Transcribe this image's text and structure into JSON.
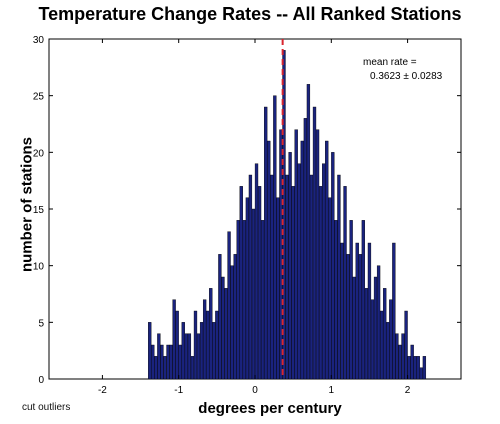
{
  "chart_data": {
    "type": "bar",
    "title": "Temperature Change Rates -- All Ranked Stations",
    "xlabel": "degrees per century",
    "ylabel": "number of stations",
    "xlim": [
      -2.7,
      2.7
    ],
    "ylim": [
      0,
      30
    ],
    "xticks": [
      -2,
      -1,
      0,
      1,
      2
    ],
    "yticks": [
      0,
      5,
      10,
      15,
      20,
      25,
      30
    ],
    "bin_width": 0.038,
    "bar_color": "#1a237e",
    "grid": false,
    "annotations": {
      "stats_line1": "mean rate =",
      "stats_line2": "0.3623 ± 0.0283",
      "note": "cut outliers",
      "mean_value": 0.3623,
      "mean_line_color": "#d9262f"
    },
    "x": [
      -1.38,
      -1.34,
      -1.3,
      -1.26,
      -1.22,
      -1.18,
      -1.14,
      -1.1,
      -1.06,
      -1.02,
      -0.98,
      -0.94,
      -0.9,
      -0.86,
      -0.82,
      -0.78,
      -0.74,
      -0.7,
      -0.66,
      -0.62,
      -0.58,
      -0.54,
      -0.5,
      -0.46,
      -0.42,
      -0.38,
      -0.34,
      -0.3,
      -0.26,
      -0.22,
      -0.18,
      -0.14,
      -0.1,
      -0.06,
      -0.02,
      0.02,
      0.06,
      0.1,
      0.14,
      0.18,
      0.22,
      0.26,
      0.3,
      0.34,
      0.38,
      0.42,
      0.46,
      0.5,
      0.54,
      0.58,
      0.62,
      0.66,
      0.7,
      0.74,
      0.78,
      0.82,
      0.86,
      0.9,
      0.94,
      0.98,
      1.02,
      1.06,
      1.1,
      1.14,
      1.18,
      1.22,
      1.26,
      1.3,
      1.34,
      1.38,
      1.42,
      1.46,
      1.5,
      1.54,
      1.58,
      1.62,
      1.66,
      1.7,
      1.74,
      1.78,
      1.82,
      1.86,
      1.9,
      1.94,
      1.98,
      2.02,
      2.06,
      2.1,
      2.14,
      2.18,
      2.22
    ],
    "values": [
      5,
      3,
      2,
      4,
      3,
      2,
      3,
      3,
      7,
      6,
      3,
      5,
      4,
      4,
      2,
      6,
      4,
      5,
      7,
      6,
      8,
      5,
      6,
      11,
      9,
      8,
      13,
      10,
      11,
      14,
      17,
      14,
      16,
      18,
      15,
      19,
      17,
      14,
      24,
      21,
      18,
      25,
      16,
      22,
      29,
      18,
      20,
      17,
      22,
      19,
      21,
      23,
      26,
      18,
      24,
      22,
      17,
      19,
      21,
      16,
      20,
      14,
      18,
      12,
      17,
      11,
      14,
      9,
      12,
      11,
      14,
      8,
      12,
      7,
      9,
      10,
      6,
      8,
      5,
      7,
      12,
      4,
      3,
      4,
      6,
      2,
      3,
      2,
      2,
      1,
      2
    ]
  }
}
